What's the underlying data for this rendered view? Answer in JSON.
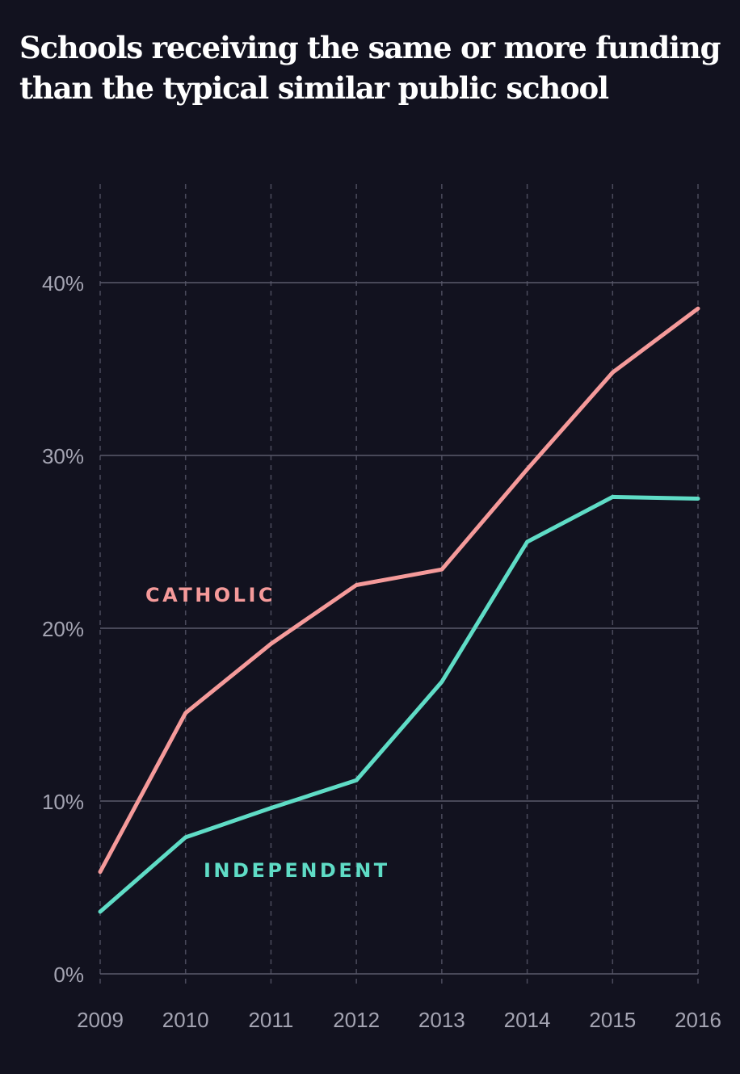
{
  "chart_data": {
    "type": "line",
    "title": "Schools receiving the same or more funding than the typical similar public school",
    "xlabel": "",
    "ylabel": "",
    "x": [
      2009,
      2010,
      2011,
      2012,
      2013,
      2014,
      2015,
      2016
    ],
    "x_tick_labels": [
      "2009",
      "2010",
      "2011",
      "2012",
      "2013",
      "2014",
      "2015",
      "2016"
    ],
    "ylim": [
      0,
      40
    ],
    "y_ticks": [
      0,
      10,
      20,
      30,
      40
    ],
    "y_tick_labels": [
      "0%",
      "10%",
      "20%",
      "30%",
      "40%"
    ],
    "grid": true,
    "legend": "direct labels on lines",
    "series": [
      {
        "name": "CATHOLIC",
        "color": "#f59a9a",
        "values": [
          5.9,
          15.1,
          19.1,
          22.5,
          23.4,
          29.2,
          34.8,
          38.5
        ]
      },
      {
        "name": "INDEPENDENT",
        "color": "#5fdcc6",
        "values": [
          3.6,
          7.9,
          9.6,
          11.2,
          16.9,
          25.0,
          27.6,
          27.5
        ]
      }
    ]
  }
}
